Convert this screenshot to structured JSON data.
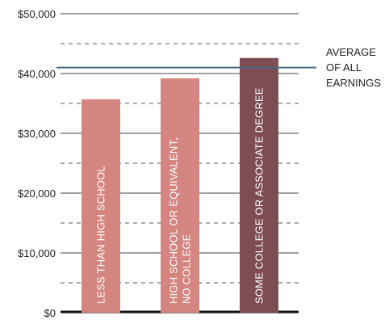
{
  "chart_data": {
    "type": "bar",
    "categories": [
      [
        "LESS THAN HIGH SCHOOL"
      ],
      [
        "HIGH SCHOOL OR EQUIVALENT,",
        "NO COLLEGE"
      ],
      [
        "SOME COLLEGE OR ASSOCIATE DEGREE"
      ]
    ],
    "values": [
      35700,
      39200,
      42600
    ],
    "ylim": [
      0,
      50000
    ],
    "yticks": [
      0,
      10000,
      20000,
      30000,
      40000,
      50000
    ],
    "ytick_labels": [
      "$0",
      "$10,000",
      "$20,000",
      "$30,000",
      "$40,000",
      "$50,000"
    ],
    "minor_gridlines": [
      5000,
      15000,
      25000,
      35000,
      45000
    ],
    "reference_line": {
      "value": 41000,
      "label": [
        "AVERAGE",
        "OF ALL",
        "EARNINGS"
      ]
    },
    "bar_colors": [
      "#d4857f",
      "#d4857f",
      "#7d4d53"
    ],
    "reference_color": "#4b6a84",
    "grid": true
  }
}
